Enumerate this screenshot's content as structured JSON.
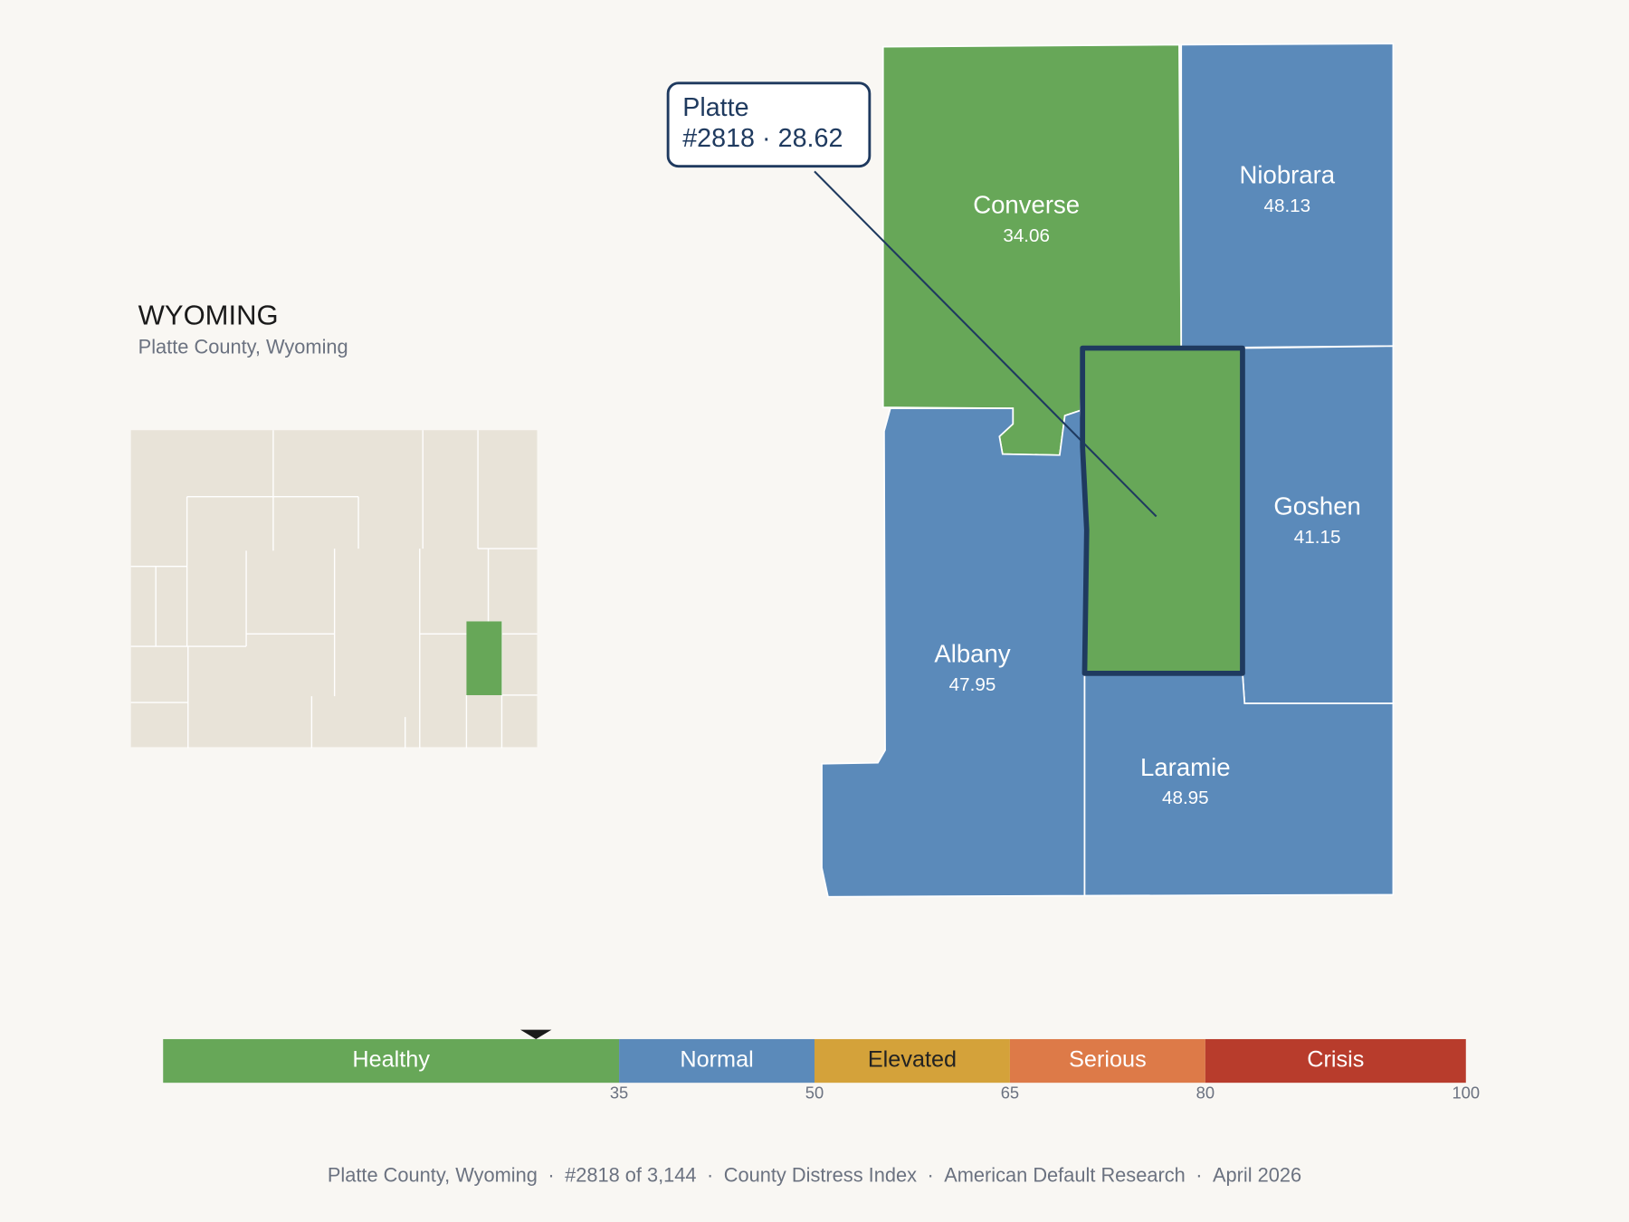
{
  "header": {
    "title": "WYOMING",
    "subtitle": "Platte County, Wyoming"
  },
  "callout": {
    "name": "Platte",
    "rank": "#2818",
    "separator": "·",
    "score": 28.62
  },
  "counties": [
    {
      "name": "Converse",
      "value": 34.06
    },
    {
      "name": "Niobrara",
      "value": 48.13
    },
    {
      "name": "Goshen",
      "value": 41.15
    },
    {
      "name": "Albany",
      "value": 47.95
    },
    {
      "name": "Laramie",
      "value": 48.95
    }
  ],
  "scale": {
    "range": [
      0,
      100
    ],
    "bands": [
      {
        "label": "Healthy",
        "to": 35,
        "color": "#67a758",
        "text_color": "#ffffff"
      },
      {
        "label": "Normal",
        "to": 50,
        "color": "#5b8aba",
        "text_color": "#ffffff"
      },
      {
        "label": "Elevated",
        "to": 65,
        "color": "#d4a23a",
        "text_color": "#222222"
      },
      {
        "label": "Serious",
        "to": 80,
        "color": "#dd7a48",
        "text_color": "#ffffff"
      },
      {
        "label": "Crisis",
        "to": 100,
        "color": "#b83c2c",
        "text_color": "#ffffff"
      }
    ]
  },
  "footer": {
    "items": [
      "Platte County, Wyoming",
      "#2818 of 3,144",
      "County Distress Index",
      "American Default Research",
      "April 2026"
    ],
    "separator": "·"
  }
}
